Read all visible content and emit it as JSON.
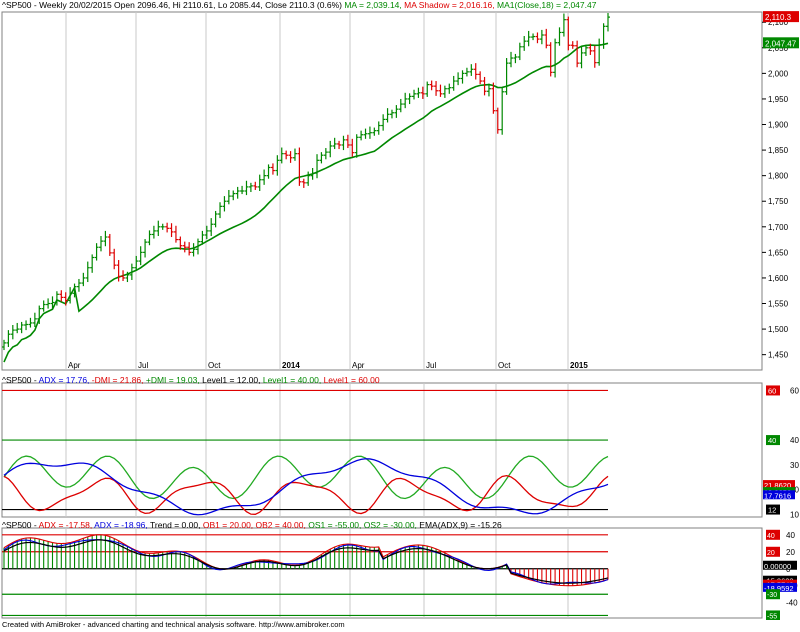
{
  "colors": {
    "up": "#008800",
    "down": "#dd0000",
    "adx": "#dd0000",
    "pdi": "#22aa22",
    "mdi": "#dd0000",
    "ma": "#008800",
    "blue": "#0000dd",
    "black": "#000000",
    "grid": "#c8c8c8"
  },
  "header_main": [
    {
      "t": "^SP500 - Weekly 20/02/2015 Open 2096.46, Hi 2110.61, Lo 2085.44, Close 2110.3 (0.6%) ",
      "c": "#000"
    },
    {
      "t": "MA = 2,039.14, ",
      "c": "#008800"
    },
    {
      "t": "MA Shadow = 2,016.16, ",
      "c": "#dd0000"
    },
    {
      "t": "MA1(Close,18) = 2,047.47",
      "c": "#008800"
    }
  ],
  "header_adx": [
    {
      "t": "^SP500 - ",
      "c": "#000"
    },
    {
      "t": "ADX = 17.76, ",
      "c": "#0000dd"
    },
    {
      "t": "-DMI = 21.86, ",
      "c": "#dd0000"
    },
    {
      "t": "+DMI = 19.03, ",
      "c": "#008800"
    },
    {
      "t": "Level1 = 12.00, ",
      "c": "#000"
    },
    {
      "t": "Level1 = 40.00, ",
      "c": "#008800"
    },
    {
      "t": "Level1 = 60.00",
      "c": "#dd0000"
    }
  ],
  "header_osc": [
    {
      "t": "^SP500 - ",
      "c": "#000"
    },
    {
      "t": "ADX = -17.58, ",
      "c": "#dd0000"
    },
    {
      "t": "ADX = -18.96, ",
      "c": "#0000dd"
    },
    {
      "t": "Trend = 0.00, ",
      "c": "#000"
    },
    {
      "t": "OB1 = 20.00, ",
      "c": "#dd0000"
    },
    {
      "t": "OB2 = 40.00, ",
      "c": "#dd0000"
    },
    {
      "t": "OS1 = -55.00, ",
      "c": "#008800"
    },
    {
      "t": "OS2 = -30.00, ",
      "c": "#008800"
    },
    {
      "t": "EMA(ADX,9) = -15.26",
      "c": "#000"
    }
  ],
  "footer": "Created with AmiBroker - advanced charting and technical analysis software. http://www.amibroker.com",
  "chart_data": [
    {
      "type": "ohlc",
      "period": "weekly",
      "x_labels": [
        "Apr",
        "Jul",
        "Oct",
        "2014",
        "Apr",
        "Jul",
        "Oct",
        "2015"
      ],
      "y_ticks": [
        "1,450",
        "1,500",
        "1,550",
        "1,600",
        "1,650",
        "1,700",
        "1,750",
        "1,800",
        "1,850",
        "1,900",
        "1,950",
        "2,000",
        "2,050",
        "2,100"
      ],
      "ylim": [
        1420,
        2120
      ],
      "last_close_label": "2,110.3",
      "ma_label": "2,047.47",
      "close": [
        1473,
        1490,
        1498,
        1500,
        1508,
        1509,
        1512,
        1520,
        1540,
        1548,
        1550,
        1552,
        1568,
        1562,
        1556,
        1570,
        1583,
        1590,
        1600,
        1620,
        1640,
        1660,
        1672,
        1680,
        1649,
        1625,
        1603,
        1600,
        1606,
        1620,
        1633,
        1650,
        1670,
        1685,
        1692,
        1700,
        1700,
        1697,
        1690,
        1675,
        1663,
        1660,
        1650,
        1656,
        1671,
        1684,
        1692,
        1705,
        1725,
        1740,
        1750,
        1760,
        1765,
        1770,
        1770,
        1778,
        1780,
        1778,
        1792,
        1800,
        1816,
        1810,
        1830,
        1843,
        1840,
        1835,
        1843,
        1788,
        1786,
        1800,
        1805,
        1830,
        1840,
        1846,
        1858,
        1862,
        1860,
        1870,
        1860,
        1845,
        1875,
        1880,
        1882,
        1884,
        1888,
        1898,
        1910,
        1920,
        1923,
        1930,
        1940,
        1950,
        1955,
        1960,
        1962,
        1960,
        1978,
        1975,
        1966,
        1960,
        1970,
        1972,
        1985,
        1990,
        2000,
        2003,
        2008,
        1998,
        1985,
        1965,
        1970,
        1927,
        1890,
        1964,
        2020,
        2030,
        2032,
        2052,
        2063,
        2071,
        2072,
        2067,
        2075,
        2055,
        2002,
        2060,
        2080,
        2105,
        2055,
        2054,
        2020,
        2040,
        2050,
        2044,
        2021,
        2056,
        2092,
        2110
      ]
    },
    {
      "type": "line",
      "name": "ADX/DMI",
      "y_ticks": [
        "10",
        "20",
        "30",
        "40",
        "60"
      ],
      "ylim": [
        9,
        63
      ],
      "levels": [
        12,
        40,
        60
      ],
      "value_tags": [
        "21.8620",
        "19.0253",
        "17.7616"
      ],
      "level_tags": [
        "60",
        "40",
        "12"
      ]
    },
    {
      "type": "line",
      "name": "ADX oscillator",
      "y_ticks": [
        "40",
        "20",
        "0",
        "-20",
        "-40"
      ],
      "ylim": [
        -58,
        48
      ],
      "levels": [
        40,
        20,
        0,
        -30,
        -55
      ],
      "value_tags": [
        "0.00000",
        "-15.2628",
        "-17.5749",
        "-18.9592"
      ],
      "level_tags": [
        "40",
        "20",
        "-30",
        "-55"
      ]
    }
  ]
}
